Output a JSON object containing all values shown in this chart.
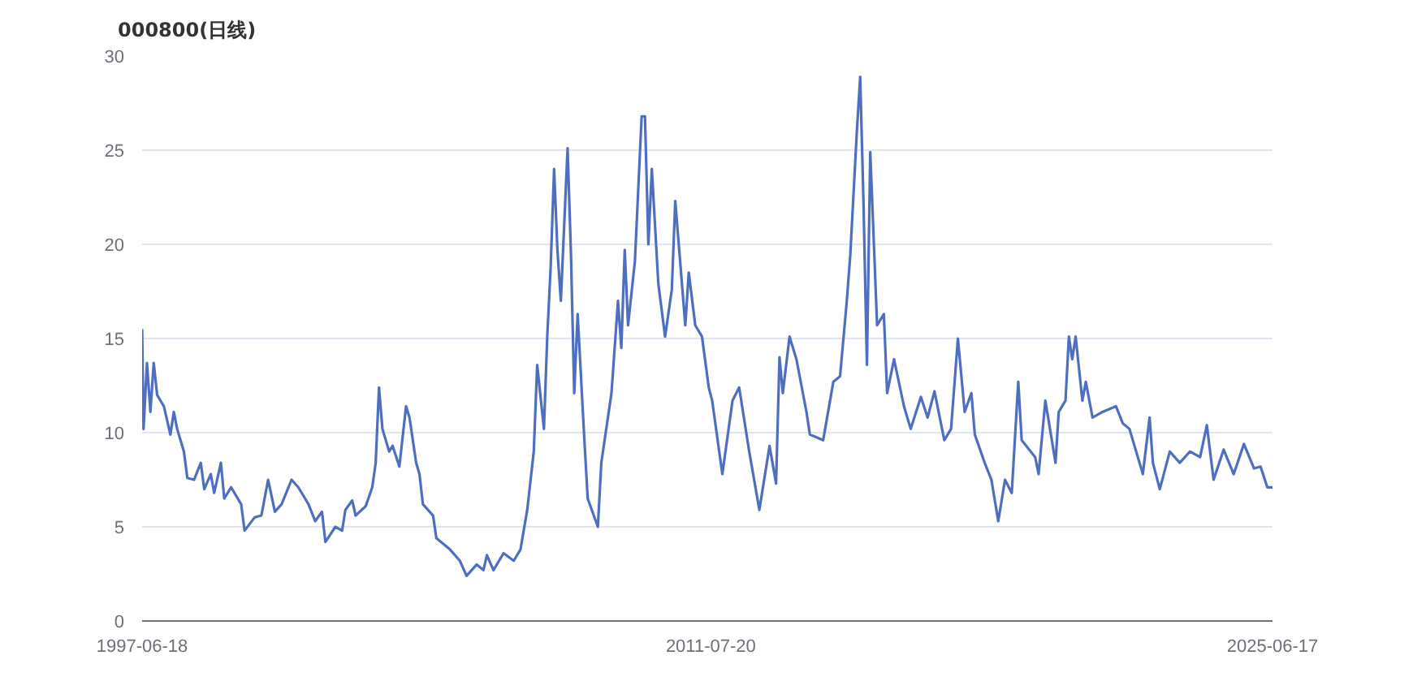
{
  "chart_data": {
    "type": "line",
    "title": "000800(日线)",
    "x": [
      "1997-06-18",
      "1997-07",
      "1997-08",
      "1997-09",
      "1997-10",
      "1997-11",
      "1998-01",
      "1998-03",
      "1998-04",
      "1998-05",
      "1998-07",
      "1998-08",
      "1998-10",
      "1998-12",
      "1999-01",
      "1999-03",
      "1999-04",
      "1999-06",
      "1999-07",
      "1999-09",
      "1999-12",
      "2000-01",
      "2000-04",
      "2000-06",
      "2000-08",
      "2000-10",
      "2000-12",
      "2001-03",
      "2001-05",
      "2001-08",
      "2001-10",
      "2001-12",
      "2002-01",
      "2002-04",
      "2002-06",
      "2002-07",
      "2002-09",
      "2002-10",
      "2003-01",
      "2003-03",
      "2003-04",
      "2003-05",
      "2003-06",
      "2003-08",
      "2003-09",
      "2003-11",
      "2004-01",
      "2004-02",
      "2004-04",
      "2004-05",
      "2004-06",
      "2004-09",
      "2004-10",
      "2005-02",
      "2005-05",
      "2005-07",
      "2005-10",
      "2005-12",
      "2006-01",
      "2006-03",
      "2006-06",
      "2006-09",
      "2006-11",
      "2007-01",
      "2007-03",
      "2007-04",
      "2007-06",
      "2007-07",
      "2007-08",
      "2007-09",
      "2007-10",
      "2007-11",
      "2008-01",
      "2008-02",
      "2008-03",
      "2008-04",
      "2008-06",
      "2008-07",
      "2008-10",
      "2008-11",
      "2009-02",
      "2009-04",
      "2009-05",
      "2009-06",
      "2009-07",
      "2009-09",
      "2009-11",
      "2009-12",
      "2010-01",
      "2010-02",
      "2010-04",
      "2010-06",
      "2010-08",
      "2010-09",
      "2010-12",
      "2011-01",
      "2011-03",
      "2011-05",
      "2011-07",
      "2011-08",
      "2011-11",
      "2012-02",
      "2012-04",
      "2012-07",
      "2012-10",
      "2013-01",
      "2013-03",
      "2013-04",
      "2013-05",
      "2013-07",
      "2013-09",
      "2013-12",
      "2014-01",
      "2014-05",
      "2014-08",
      "2014-10",
      "2014-12",
      "2015-01",
      "2015-03",
      "2015-04",
      "2015-05",
      "2015-06",
      "2015-07",
      "2015-09",
      "2015-11",
      "2015-12",
      "2016-02",
      "2016-05",
      "2016-07",
      "2016-10",
      "2016-12",
      "2017-02",
      "2017-05",
      "2017-07",
      "2017-09",
      "2017-11",
      "2018-01",
      "2018-02",
      "2018-05",
      "2018-07",
      "2018-09",
      "2018-11",
      "2019-01",
      "2019-03",
      "2019-04",
      "2019-08",
      "2019-09",
      "2019-11",
      "2020-02",
      "2020-03",
      "2020-05",
      "2020-06",
      "2020-07",
      "2020-08",
      "2020-10",
      "2020-11",
      "2021-01",
      "2021-04",
      "2021-08",
      "2021-10",
      "2021-12",
      "2022-04",
      "2022-06",
      "2022-07",
      "2022-09",
      "2022-12",
      "2023-03",
      "2023-06",
      "2023-09",
      "2023-11",
      "2024-01",
      "2024-04",
      "2024-07",
      "2024-10",
      "2025-01",
      "2025-03",
      "2025-05",
      "2025-06-17"
    ],
    "series": [
      {
        "color": "#4e6fbf",
        "values": [
          15.5,
          10.2,
          13.7,
          11.1,
          13.7,
          12.0,
          11.4,
          9.9,
          11.1,
          10.2,
          9.0,
          7.6,
          7.5,
          8.4,
          7.0,
          7.8,
          6.8,
          8.4,
          6.5,
          7.1,
          6.2,
          4.8,
          5.5,
          5.6,
          7.5,
          5.8,
          6.2,
          7.5,
          7.1,
          6.2,
          5.3,
          5.8,
          4.2,
          5.0,
          4.8,
          5.9,
          6.4,
          5.6,
          6.1,
          7.1,
          8.4,
          12.4,
          10.2,
          9.0,
          9.3,
          8.2,
          11.4,
          10.8,
          8.4,
          7.8,
          6.2,
          5.6,
          4.4,
          3.8,
          3.2,
          2.4,
          3.0,
          2.7,
          3.5,
          2.7,
          3.6,
          3.2,
          3.8,
          5.9,
          9.0,
          13.6,
          10.2,
          15.1,
          18.8,
          24.0,
          19.7,
          17.0,
          25.1,
          19.4,
          12.1,
          16.3,
          9.6,
          6.5,
          5.0,
          8.4,
          12.1,
          17.0,
          14.5,
          19.7,
          15.7,
          19.1,
          26.8,
          26.8,
          20.0,
          24.0,
          17.9,
          15.1,
          17.6,
          22.3,
          15.7,
          18.5,
          15.7,
          15.1,
          12.4,
          11.7,
          7.8,
          11.7,
          12.4,
          9.0,
          5.9,
          9.3,
          7.3,
          14.0,
          12.1,
          15.1,
          13.9,
          11.1,
          9.9,
          9.6,
          12.7,
          13.0,
          17.0,
          19.4,
          25.9,
          28.9,
          22.2,
          13.6,
          24.9,
          15.7,
          16.3,
          12.1,
          13.9,
          11.4,
          10.2,
          11.9,
          10.8,
          12.2,
          9.6,
          10.2,
          15.0,
          11.1,
          12.1,
          9.9,
          8.4,
          7.5,
          5.3,
          7.5,
          6.8,
          12.7,
          9.6,
          8.7,
          7.8,
          11.7,
          8.4,
          11.1,
          11.7,
          15.1,
          13.9,
          15.1,
          11.7,
          12.7,
          10.8,
          11.1,
          11.4,
          10.5,
          10.2,
          7.8,
          10.8,
          8.4,
          7.0,
          9.0,
          8.4,
          9.0,
          8.7,
          10.4,
          7.5,
          9.1,
          7.8,
          9.4,
          8.1,
          8.2,
          7.1,
          7.1
        ]
      }
    ],
    "xlim": [
      "1997-06-18",
      "2025-06-17"
    ],
    "xticks": [
      "1997-06-18",
      "2011-07-20",
      "2025-06-17"
    ],
    "ylim": [
      0,
      30
    ],
    "yticks": [
      0,
      5,
      10,
      15,
      20,
      25,
      30
    ],
    "grid": "y"
  }
}
